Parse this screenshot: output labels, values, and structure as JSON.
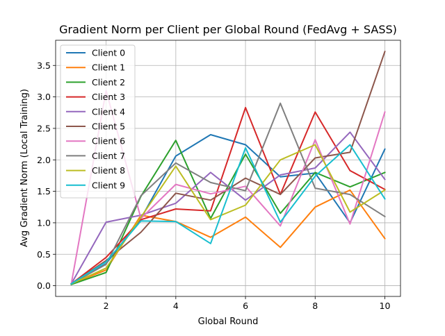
{
  "chart_data": {
    "type": "line",
    "title": "Gradient Norm per Client per Global Round (FedAvg + SASS)",
    "xlabel": "Global Round",
    "ylabel": "Avg Gradient Norm (Local Training)",
    "xlim": [
      0.55,
      10.45
    ],
    "ylim": [
      -0.17,
      3.9
    ],
    "x_ticks": [
      2,
      4,
      6,
      8,
      10
    ],
    "y_ticks": [
      0.0,
      0.5,
      1.0,
      1.5,
      2.0,
      2.5,
      3.0,
      3.5
    ],
    "grid": true,
    "legend_position": "upper-left",
    "x": [
      1,
      2,
      3,
      4,
      5,
      6,
      7,
      8,
      9,
      10
    ],
    "series": [
      {
        "name": "Client 0",
        "color": "#1f77b4",
        "values": [
          0.03,
          0.35,
          1.07,
          2.06,
          2.4,
          2.24,
          1.73,
          1.79,
          1.0,
          2.17
        ]
      },
      {
        "name": "Client 1",
        "color": "#ff7f0e",
        "values": [
          0.03,
          0.25,
          1.12,
          1.02,
          0.77,
          1.09,
          0.61,
          1.25,
          1.52,
          0.75
        ]
      },
      {
        "name": "Client 2",
        "color": "#2ca02c",
        "values": [
          0.02,
          0.21,
          1.42,
          2.31,
          1.07,
          2.09,
          1.15,
          1.8,
          1.57,
          1.8
        ]
      },
      {
        "name": "Client 3",
        "color": "#d62728",
        "values": [
          0.03,
          0.45,
          1.05,
          1.22,
          1.19,
          2.83,
          1.45,
          2.76,
          1.83,
          1.53
        ]
      },
      {
        "name": "Client 4",
        "color": "#9467bd",
        "values": [
          0.03,
          1.01,
          1.12,
          1.31,
          1.8,
          1.36,
          1.76,
          1.87,
          2.44,
          1.69
        ]
      },
      {
        "name": "Client 5",
        "color": "#8c564b",
        "values": [
          0.03,
          0.4,
          0.85,
          1.47,
          1.36,
          1.71,
          1.45,
          2.03,
          2.12,
          3.72
        ]
      },
      {
        "name": "Client 6",
        "color": "#e377c2",
        "values": [
          0.03,
          3.1,
          1.07,
          1.61,
          1.46,
          1.58,
          0.95,
          2.32,
          0.98,
          2.76
        ]
      },
      {
        "name": "Client 7",
        "color": "#7f7f7f",
        "values": [
          0.03,
          0.34,
          1.43,
          1.95,
          1.64,
          1.51,
          2.9,
          1.55,
          1.45,
          1.1
        ]
      },
      {
        "name": "Client 8",
        "color": "#bcbd22",
        "values": [
          0.03,
          0.28,
          1.09,
          1.9,
          1.05,
          1.28,
          2.0,
          2.24,
          1.17,
          1.52
        ]
      },
      {
        "name": "Client 9",
        "color": "#17becf",
        "values": [
          0.03,
          0.38,
          1.03,
          1.02,
          0.67,
          2.19,
          1.01,
          1.74,
          2.24,
          1.38
        ]
      }
    ]
  }
}
